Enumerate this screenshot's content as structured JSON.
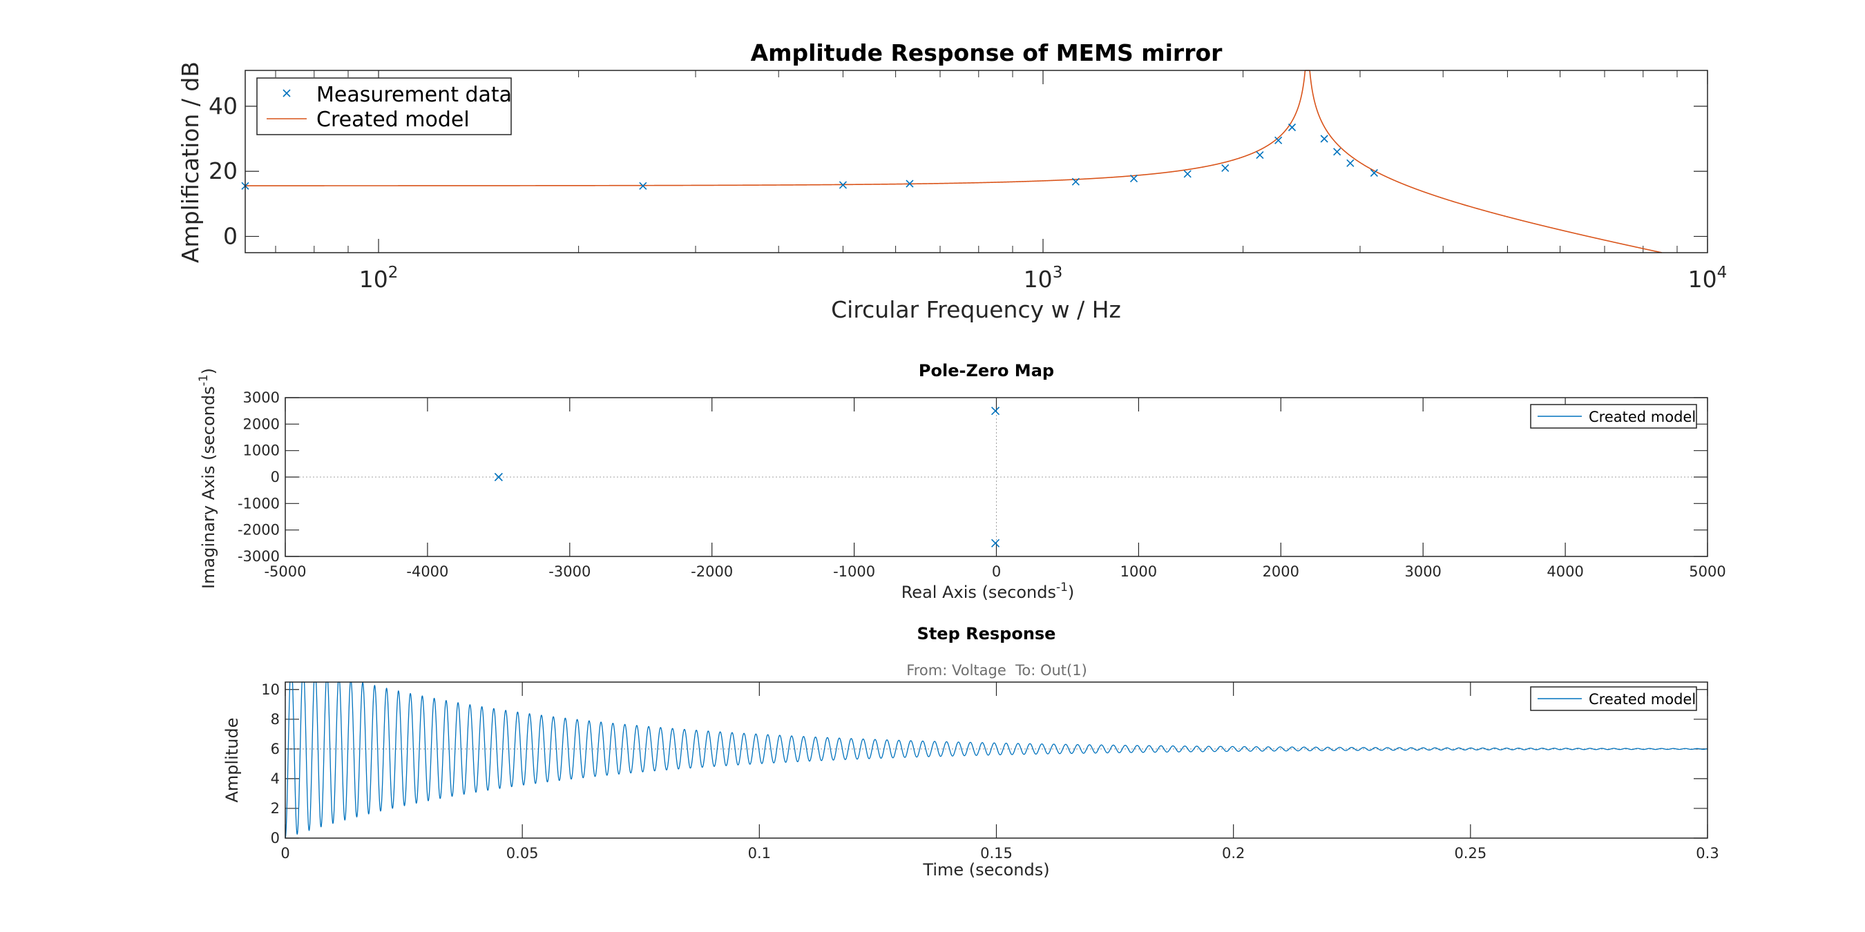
{
  "chart_data": [
    {
      "type": "line",
      "title": "Amplitude Response of MEMS mirror",
      "xlabel": "Circular Frequency w / Hz",
      "ylabel": "Amplification / dB",
      "xscale": "log",
      "xlim": [
        63,
        10000
      ],
      "ylim": [
        -5,
        51
      ],
      "xticks": [
        100,
        1000,
        10000
      ],
      "xtick_labels": [
        {
          "base": "10",
          "exp": "2"
        },
        {
          "base": "10",
          "exp": "3"
        },
        {
          "base": "10",
          "exp": "4"
        }
      ],
      "yticks": [
        0,
        20,
        40
      ],
      "ytick_labels": [
        "0",
        "20",
        "40"
      ],
      "grid": false,
      "legend_position": "top-left",
      "series": [
        {
          "name": "Measurement data",
          "style": "markers-x",
          "color": "#0072BD",
          "x": [
            63,
            250,
            500,
            630,
            1120,
            1370,
            1650,
            1880,
            2120,
            2260,
            2370,
            2650,
            2770,
            2900,
            3150
          ],
          "y": [
            15.5,
            15.5,
            15.8,
            16.2,
            16.8,
            17.8,
            19.2,
            21.0,
            25.0,
            29.5,
            33.5,
            30.0,
            26.0,
            22.5,
            19.5
          ]
        },
        {
          "name": "Created model",
          "style": "line",
          "color": "#D95319",
          "model": {
            "dc_gain": 6,
            "omega_n": 2500,
            "damping": 0.0028
          }
        }
      ]
    },
    {
      "type": "scatter",
      "title": "Pole-Zero Map",
      "xlabel": {
        "text": "Real Axis (seconds",
        "sup": "-1",
        "tail": ")"
      },
      "ylabel": {
        "text": "Imaginary Axis (seconds",
        "sup": "-1",
        "tail": ")"
      },
      "xlim": [
        -5000,
        5000
      ],
      "ylim": [
        -3000,
        3000
      ],
      "xticks": [
        -5000,
        -4000,
        -3000,
        -2000,
        -1000,
        0,
        1000,
        2000,
        3000,
        4000,
        5000
      ],
      "xtick_labels": [
        "-5000",
        "-4000",
        "-3000",
        "-2000",
        "-1000",
        "0",
        "1000",
        "2000",
        "3000",
        "4000",
        "5000"
      ],
      "yticks": [
        -3000,
        -2000,
        -1000,
        0,
        1000,
        2000,
        3000
      ],
      "ytick_labels": [
        "-3000",
        "-2000",
        "-1000",
        "0",
        "1000",
        "2000",
        "3000"
      ],
      "grid": false,
      "legend_position": "top-right",
      "series": [
        {
          "name": "Created model",
          "color": "#0072BD",
          "poles": [
            {
              "x": -3500,
              "y": 0
            },
            {
              "x": -7,
              "y": 2500
            },
            {
              "x": -7,
              "y": -2500
            }
          ]
        }
      ]
    },
    {
      "type": "line",
      "title": "Step Response",
      "subtitle": "From: Voltage  To: Out(1)",
      "xlabel": "Time (seconds)",
      "ylabel": "Amplitude",
      "xlim": [
        0,
        0.3
      ],
      "ylim": [
        0,
        10.5
      ],
      "xticks": [
        0,
        0.05,
        0.1,
        0.15,
        0.2,
        0.25,
        0.3
      ],
      "xtick_labels": [
        "0",
        "0.05",
        "0.1",
        "0.15",
        "0.2",
        "0.25",
        "0.3"
      ],
      "yticks": [
        0,
        2,
        4,
        6,
        8,
        10
      ],
      "ytick_labels": [
        "0",
        "2",
        "4",
        "6",
        "8",
        "10"
      ],
      "grid": false,
      "legend_position": "top-right",
      "series": [
        {
          "name": "Created model",
          "color": "#0072BD",
          "model": {
            "final_value": 6,
            "omega_d": 2500,
            "sigma": 18
          }
        }
      ]
    }
  ]
}
